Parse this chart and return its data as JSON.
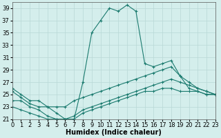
{
  "xlabel": "Humidex (Indice chaleur)",
  "bg_color": "#d4eeec",
  "grid_color": "#b8d8d6",
  "line_color": "#1a7a6e",
  "ylim": [
    21,
    40
  ],
  "xlim": [
    0,
    23
  ],
  "yticks": [
    21,
    23,
    25,
    27,
    29,
    31,
    33,
    35,
    37,
    39
  ],
  "xticks": [
    0,
    1,
    2,
    3,
    4,
    5,
    6,
    7,
    8,
    9,
    10,
    11,
    12,
    13,
    14,
    15,
    16,
    17,
    18,
    19,
    20,
    21,
    22,
    23
  ],
  "xtick_labels": [
    "0",
    "1",
    "2",
    "3",
    "4",
    "5",
    "6",
    "7",
    "8",
    "9",
    "10",
    "11",
    "12",
    "13",
    "14",
    "15",
    "16",
    "17",
    "18",
    "19",
    "20",
    "21",
    "22",
    "23"
  ],
  "lines": [
    {
      "x": [
        0,
        1,
        2,
        3,
        4,
        5,
        6,
        7,
        8,
        9,
        10,
        11,
        12,
        13,
        14,
        15,
        16,
        17,
        18,
        19,
        20,
        21,
        22,
        23
      ],
      "y": [
        26,
        25,
        24,
        24,
        23,
        22,
        21,
        21,
        27,
        35,
        37,
        39,
        38.5,
        39.5,
        38.5,
        30,
        29.5,
        30,
        30.5,
        28,
        26,
        25.5,
        25,
        25
      ]
    },
    {
      "x": [
        0,
        1,
        2,
        3,
        4,
        5,
        6,
        7,
        8,
        9,
        10,
        11,
        12,
        13,
        14,
        15,
        16,
        17,
        18,
        19,
        20,
        21,
        22,
        23
      ],
      "y": [
        25.5,
        24.5,
        23.5,
        23,
        23,
        23,
        23,
        24,
        24.5,
        25,
        25.5,
        26,
        26.5,
        27,
        27.5,
        28,
        28.5,
        29,
        29.5,
        28,
        27,
        26,
        25.5,
        25
      ]
    },
    {
      "x": [
        0,
        1,
        2,
        3,
        4,
        5,
        6,
        7,
        8,
        9,
        10,
        11,
        12,
        13,
        14,
        15,
        16,
        17,
        18,
        19,
        20,
        21,
        22,
        23
      ],
      "y": [
        24,
        24,
        23,
        22.5,
        21.5,
        21,
        21,
        21.5,
        22.5,
        23,
        23.5,
        24,
        24.5,
        25,
        25.5,
        26,
        26.5,
        27,
        27.5,
        27,
        26.5,
        26,
        25.5,
        25
      ]
    },
    {
      "x": [
        0,
        1,
        2,
        3,
        4,
        5,
        6,
        7,
        8,
        9,
        10,
        11,
        12,
        13,
        14,
        15,
        16,
        17,
        18,
        19,
        20,
        21,
        22,
        23
      ],
      "y": [
        23,
        22.5,
        22,
        21.5,
        21,
        21,
        21,
        21,
        22,
        22.5,
        23,
        23.5,
        24,
        24.5,
        25,
        25.5,
        25.5,
        26,
        26,
        25.5,
        25.5,
        25.5,
        25,
        25
      ]
    }
  ],
  "axis_fontsize": 7,
  "tick_fontsize": 6
}
